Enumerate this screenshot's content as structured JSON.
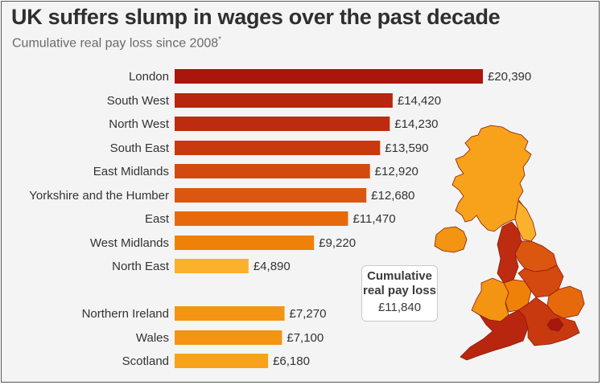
{
  "header": {
    "title": "UK suffers slump in wages over the past decade",
    "subtitle": "Cumulative real pay loss since 2008",
    "subtitle_mark": "*"
  },
  "callout": {
    "line1": "Cumulative",
    "line2": "real pay loss",
    "value": "£11,840"
  },
  "chart_data": {
    "type": "bar",
    "orientation": "horizontal",
    "title": "UK suffers slump in wages over the past decade",
    "subtitle": "Cumulative real pay loss since 2008*",
    "categories": [
      "London",
      "South West",
      "North West",
      "South East",
      "East Midlands",
      "Yorkshire and the Humber",
      "East",
      "West Midlands",
      "North East",
      "Northern Ireland",
      "Wales",
      "Scotland"
    ],
    "values": [
      20390,
      14420,
      14230,
      13590,
      12920,
      12680,
      11470,
      9220,
      4890,
      7270,
      7100,
      6180
    ],
    "labels": [
      "£20,390",
      "£14,420",
      "£14,230",
      "£13,590",
      "£12,920",
      "£12,680",
      "£11,470",
      "£9,220",
      "£4,890",
      "£7,270",
      "£7,100",
      "£6,180"
    ],
    "colors": [
      "#a8160c",
      "#b9260f",
      "#bd2c10",
      "#c8390f",
      "#d4490f",
      "#db560f",
      "#e66a0c",
      "#ef8108",
      "#fbb12c",
      "#f39412",
      "#f39412",
      "#f7a21a"
    ],
    "groups": [
      [
        "London",
        "South West",
        "North West",
        "South East",
        "East Midlands",
        "Yorkshire and the Humber",
        "East",
        "West Midlands",
        "North East"
      ],
      [
        "Northern Ireland",
        "Wales",
        "Scotland"
      ]
    ],
    "xlim": [
      0,
      20390
    ],
    "grid": false,
    "legend": "none"
  },
  "map": {
    "regions": [
      {
        "name": "Scotland",
        "color": "#f7a21a"
      },
      {
        "name": "Northern Ireland",
        "color": "#f39412"
      },
      {
        "name": "North East",
        "color": "#fbb12c"
      },
      {
        "name": "North West",
        "color": "#bd2c10"
      },
      {
        "name": "Yorkshire and the Humber",
        "color": "#db560f"
      },
      {
        "name": "Wales",
        "color": "#f39412"
      },
      {
        "name": "West Midlands",
        "color": "#ef8108"
      },
      {
        "name": "East Midlands",
        "color": "#d4490f"
      },
      {
        "name": "East",
        "color": "#e66a0c"
      },
      {
        "name": "South West",
        "color": "#b9260f"
      },
      {
        "name": "South East",
        "color": "#c8390f"
      },
      {
        "name": "London",
        "color": "#a8160c"
      }
    ]
  }
}
